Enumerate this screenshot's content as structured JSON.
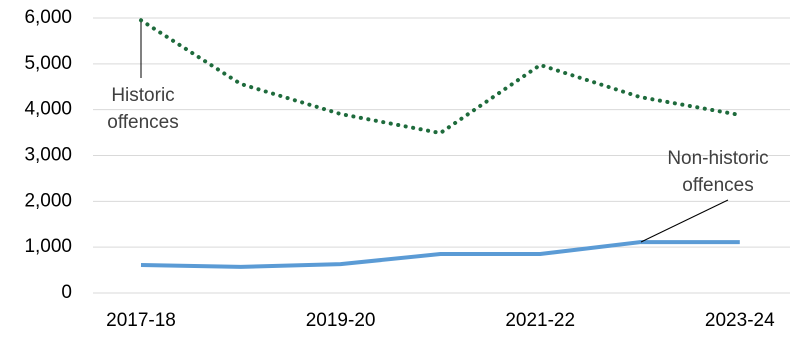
{
  "chart_data": {
    "type": "line",
    "categories": [
      "2017-18",
      null,
      "2019-20",
      null,
      "2021-22",
      null,
      "2023-24"
    ],
    "series": [
      {
        "name": "Historic offences",
        "color": "#1e6b3c",
        "dotted": true,
        "values": [
          5950,
          4560,
          3905,
          3490,
          4975,
          4275,
          3885
        ]
      },
      {
        "name": "Non-historic offences",
        "color": "#5b9bd5",
        "dotted": false,
        "values": [
          610,
          570,
          630,
          850,
          850,
          1110,
          1110
        ]
      }
    ],
    "ylim": [
      0,
      6000
    ],
    "yticks": [
      0,
      {
        "value": 1000,
        "label": "1,000"
      },
      {
        "value": 2000,
        "label": "2,000"
      },
      {
        "value": 3000,
        "label": "3,000"
      },
      {
        "value": 4000,
        "label": "4,000"
      },
      {
        "value": 5000,
        "label": "5,000"
      },
      {
        "value": 6000,
        "label": "6,000"
      }
    ],
    "grid": true
  }
}
